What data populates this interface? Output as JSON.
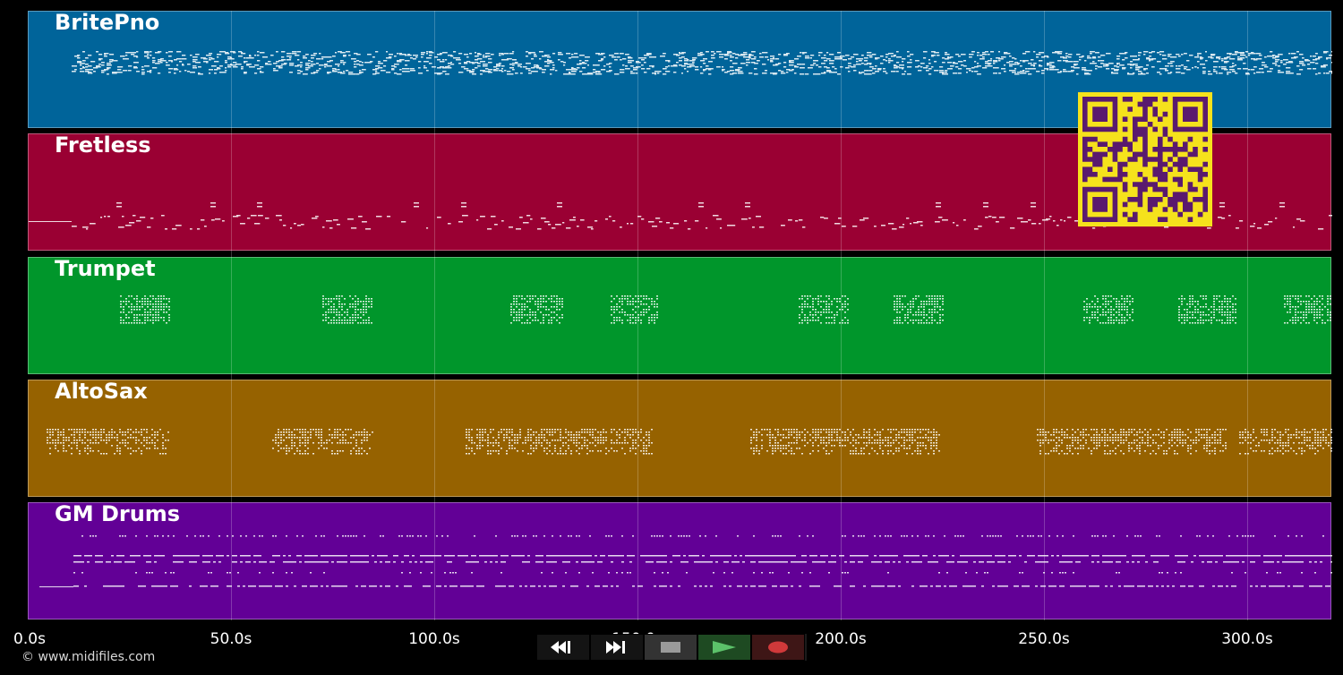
{
  "tracks": [
    {
      "name": "BritePno",
      "color": "#00649a"
    },
    {
      "name": "Fretless",
      "color": "#9a0033"
    },
    {
      "name": "Trumpet",
      "color": "#00962b"
    },
    {
      "name": "AltoSax",
      "color": "#966200"
    },
    {
      "name": "GM Drums",
      "color": "#620096"
    }
  ],
  "timeline": {
    "ticks": [
      {
        "label": "0.0s",
        "seconds": 0
      },
      {
        "label": "50.0s",
        "seconds": 50
      },
      {
        "label": "100.0s",
        "seconds": 100
      },
      {
        "label": "150.0s",
        "seconds": 150
      },
      {
        "label": "200.0s",
        "seconds": 200
      },
      {
        "label": "250.0s",
        "seconds": 250
      },
      {
        "label": "300.0s",
        "seconds": 300
      }
    ],
    "end_seconds": 320
  },
  "transport": {
    "rewind_icon": "rewind-icon",
    "fast_forward_icon": "fast-forward-icon",
    "stop_icon": "stop-icon",
    "play_icon": "play-icon",
    "record_icon": "record-icon"
  },
  "footer": {
    "copyright": "© www.midifiles.com"
  },
  "qr": {
    "color_bg": "#f5e21c",
    "color_fg": "#5a1a6e"
  }
}
